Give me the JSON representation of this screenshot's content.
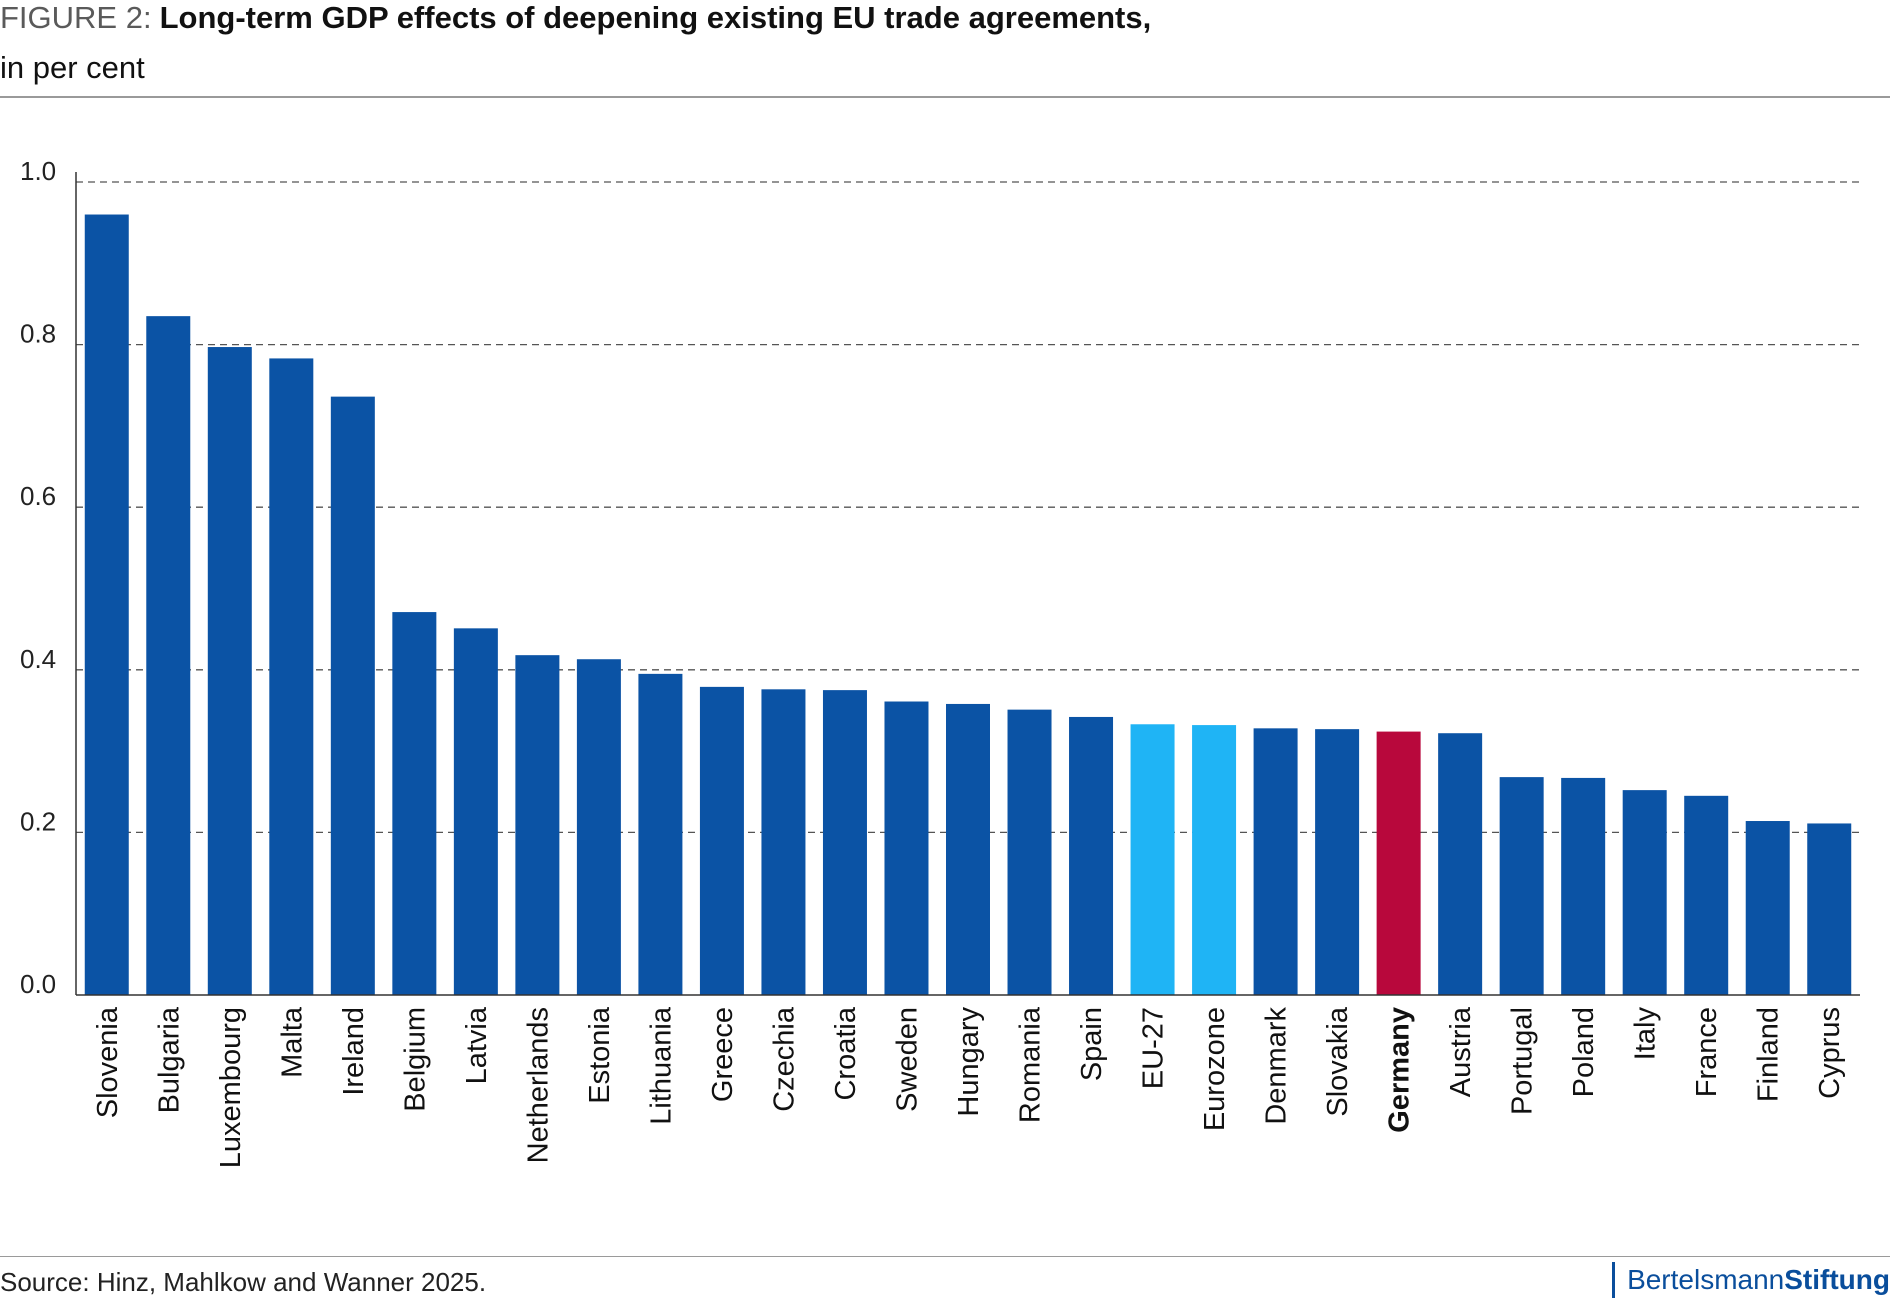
{
  "figure": {
    "label": "FIGURE 2:",
    "title": "Long-term GDP effects of deepening existing EU trade agreements,",
    "subtitle": "in per cent"
  },
  "source": "Source: Hinz, Mahlkow and Wanner 2025.",
  "logo": {
    "part1": "Bertelsmann",
    "part2": "Stiftung"
  },
  "colors": {
    "default_bar": "#0b53a5",
    "aggregate_bar": "#1fb4f5",
    "highlight_bar": "#b8083c",
    "grid": "#555555",
    "axis": "#333333"
  },
  "chart_data": {
    "type": "bar",
    "title": "Long-term GDP effects of deepening existing EU trade agreements, in per cent",
    "xlabel": "",
    "ylabel": "",
    "ylim": [
      0,
      1.0
    ],
    "yticks": [
      "0.0",
      "0.2",
      "0.4",
      "0.6",
      "0.8",
      "1.0"
    ],
    "grid": true,
    "categories": [
      "Slovenia",
      "Bulgaria",
      "Luxembourg",
      "Malta",
      "Ireland",
      "Belgium",
      "Latvia",
      "Netherlands",
      "Estonia",
      "Lithuania",
      "Greece",
      "Czechia",
      "Croatia",
      "Sweden",
      "Hungary",
      "Romania",
      "Spain",
      "EU-27",
      "Eurozone",
      "Denmark",
      "Slovakia",
      "Germany",
      "Austria",
      "Portugal",
      "Poland",
      "Italy",
      "France",
      "Finland",
      "Cyprus"
    ],
    "values": [
      0.96,
      0.835,
      0.797,
      0.783,
      0.736,
      0.471,
      0.451,
      0.418,
      0.413,
      0.395,
      0.379,
      0.376,
      0.375,
      0.361,
      0.358,
      0.351,
      0.342,
      0.333,
      0.332,
      0.328,
      0.327,
      0.324,
      0.322,
      0.268,
      0.267,
      0.252,
      0.245,
      0.214,
      0.211
    ],
    "bar_kind": [
      "default",
      "default",
      "default",
      "default",
      "default",
      "default",
      "default",
      "default",
      "default",
      "default",
      "default",
      "default",
      "default",
      "default",
      "default",
      "default",
      "default",
      "aggregate",
      "aggregate",
      "default",
      "default",
      "highlight",
      "default",
      "default",
      "default",
      "default",
      "default",
      "default",
      "default"
    ]
  }
}
